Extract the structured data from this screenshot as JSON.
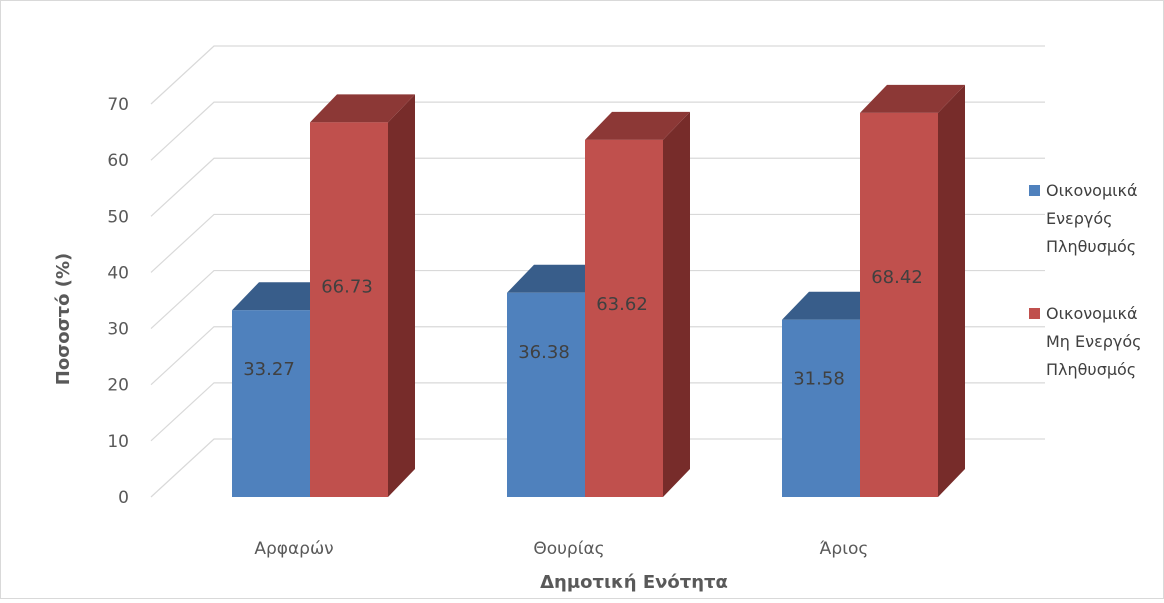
{
  "chart_data": {
    "type": "bar",
    "style": "3d-clustered-column",
    "categories": [
      "Αρφαρών",
      "Θουρίας",
      "Άριος"
    ],
    "series": [
      {
        "name": "Οικονομικά Ενεργός Πληθυσμός",
        "name_lines": [
          "Οικονομικά",
          "Ενεργός",
          "Πληθυσμός"
        ],
        "color": "#4f81bd",
        "top_color": "#385d8a",
        "side_color": "#2c4d75",
        "values": [
          33.27,
          36.38,
          31.58
        ],
        "labels": [
          "33.27",
          "36.38",
          "31.58"
        ]
      },
      {
        "name": "Οικονομικά Μη Ενεργός Πληθυσμός",
        "name_lines": [
          "Οικονομικά",
          "Μη Ενεργός",
          "Πληθυσμός"
        ],
        "color": "#c0504d",
        "top_color": "#8c3836",
        "side_color": "#772c2a",
        "values": [
          66.73,
          63.62,
          68.42
        ],
        "labels": [
          "66.73",
          "63.62",
          "68.42"
        ]
      }
    ],
    "xlabel": "Δημοτική Ενότητα",
    "ylabel": "Ποσοστό (%)",
    "ylim": [
      0,
      70
    ],
    "yticks": [
      "0",
      "10",
      "20",
      "30",
      "40",
      "50",
      "60",
      "70"
    ],
    "grid": true,
    "legend_position": "right"
  }
}
